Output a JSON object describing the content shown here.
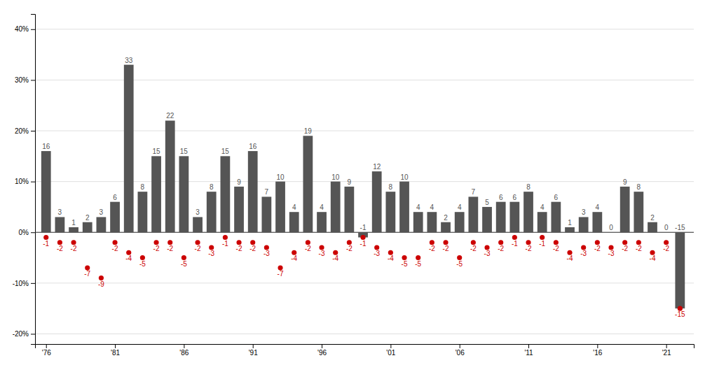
{
  "chart_data": {
    "type": "bar",
    "x": [
      1976,
      1977,
      1978,
      1979,
      1980,
      1981,
      1982,
      1983,
      1984,
      1985,
      1986,
      1987,
      1988,
      1989,
      1990,
      1991,
      1992,
      1993,
      1994,
      1995,
      1996,
      1997,
      1998,
      1999,
      2000,
      2001,
      2002,
      2003,
      2004,
      2005,
      2006,
      2007,
      2008,
      2009,
      2010,
      2011,
      2012,
      2013,
      2014,
      2015,
      2016,
      2017,
      2018,
      2019,
      2020,
      2021,
      2022
    ],
    "series": [
      {
        "type": "bar",
        "color": "#555555",
        "data_labels": true,
        "values": [
          16,
          3,
          1,
          2,
          3,
          6,
          33,
          8,
          15,
          22,
          15,
          3,
          8,
          15,
          9,
          16,
          7,
          10,
          4,
          19,
          4,
          10,
          9,
          -1,
          12,
          8,
          10,
          4,
          4,
          2,
          4,
          7,
          5,
          6,
          6,
          8,
          4,
          6,
          1,
          3,
          4,
          0,
          9,
          8,
          2,
          0,
          -15
        ]
      },
      {
        "type": "scatter",
        "color": "#cc0000",
        "marker": "circle",
        "data_labels": true,
        "values": [
          -1,
          -2,
          -2,
          -7,
          -9,
          -2,
          -4,
          -5,
          -2,
          -2,
          -5,
          -2,
          -3,
          -1,
          -2,
          -2,
          -3,
          -7,
          -4,
          -2,
          -3,
          -4,
          -2,
          -1,
          -3,
          -4,
          -5,
          -5,
          -2,
          -2,
          -5,
          -2,
          -3,
          -2,
          -1,
          -2,
          -1,
          -2,
          -4,
          -3,
          -2,
          -3,
          -2,
          -2,
          -4,
          -2,
          -15
        ]
      }
    ],
    "xlim": [
      1975.2,
      2023.0
    ],
    "xticks": [
      {
        "value": 1976,
        "label": "'76"
      },
      {
        "value": 1981,
        "label": "'81"
      },
      {
        "value": 1986,
        "label": "'86"
      },
      {
        "value": 1991,
        "label": "'91"
      },
      {
        "value": 1996,
        "label": "'96"
      },
      {
        "value": 2001,
        "label": "'01"
      },
      {
        "value": 2006,
        "label": "'06"
      },
      {
        "value": 2011,
        "label": "'11"
      },
      {
        "value": 2016,
        "label": "'16"
      },
      {
        "value": 2021,
        "label": "'21"
      }
    ],
    "ylim": [
      -22,
      43
    ],
    "yticks": [
      {
        "value": -20,
        "label": "-20%"
      },
      {
        "value": -10,
        "label": "-10%"
      },
      {
        "value": 0,
        "label": "0%"
      },
      {
        "value": 10,
        "label": "10%"
      },
      {
        "value": 20,
        "label": "20%"
      },
      {
        "value": 30,
        "label": "30%"
      },
      {
        "value": 40,
        "label": "40%"
      }
    ],
    "grid": true
  }
}
